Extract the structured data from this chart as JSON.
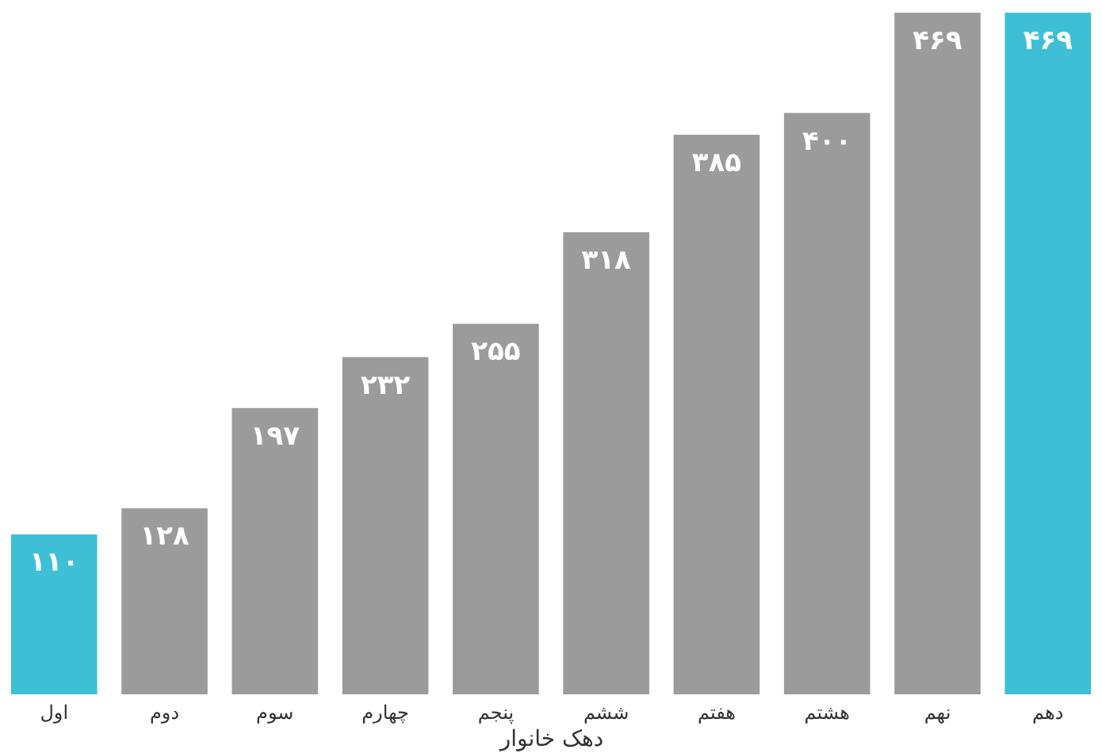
{
  "chart_data": {
    "type": "bar",
    "xlabel": "دهک خانوار",
    "categories": [
      "اول",
      "دوم",
      "سوم",
      "چهارم",
      "پنجم",
      "ششم",
      "هفتم",
      "هشتم",
      "نهم",
      "دهم"
    ],
    "values": [
      110,
      128,
      197,
      232,
      255,
      318,
      385,
      400,
      469,
      469
    ],
    "value_labels": [
      "۱۱۰",
      "۱۲۸",
      "۱۹۷",
      "۲۳۲",
      "۲۵۵",
      "۳۱۸",
      "۳۸۵",
      "۴۰۰",
      "۴۶۹",
      "۴۶۹"
    ],
    "colors": [
      "#3dc0d5",
      "#9b9b9b",
      "#9b9b9b",
      "#9b9b9b",
      "#9b9b9b",
      "#9b9b9b",
      "#9b9b9b",
      "#9b9b9b",
      "#9b9b9b",
      "#3dc0d5"
    ],
    "grid": false
  }
}
